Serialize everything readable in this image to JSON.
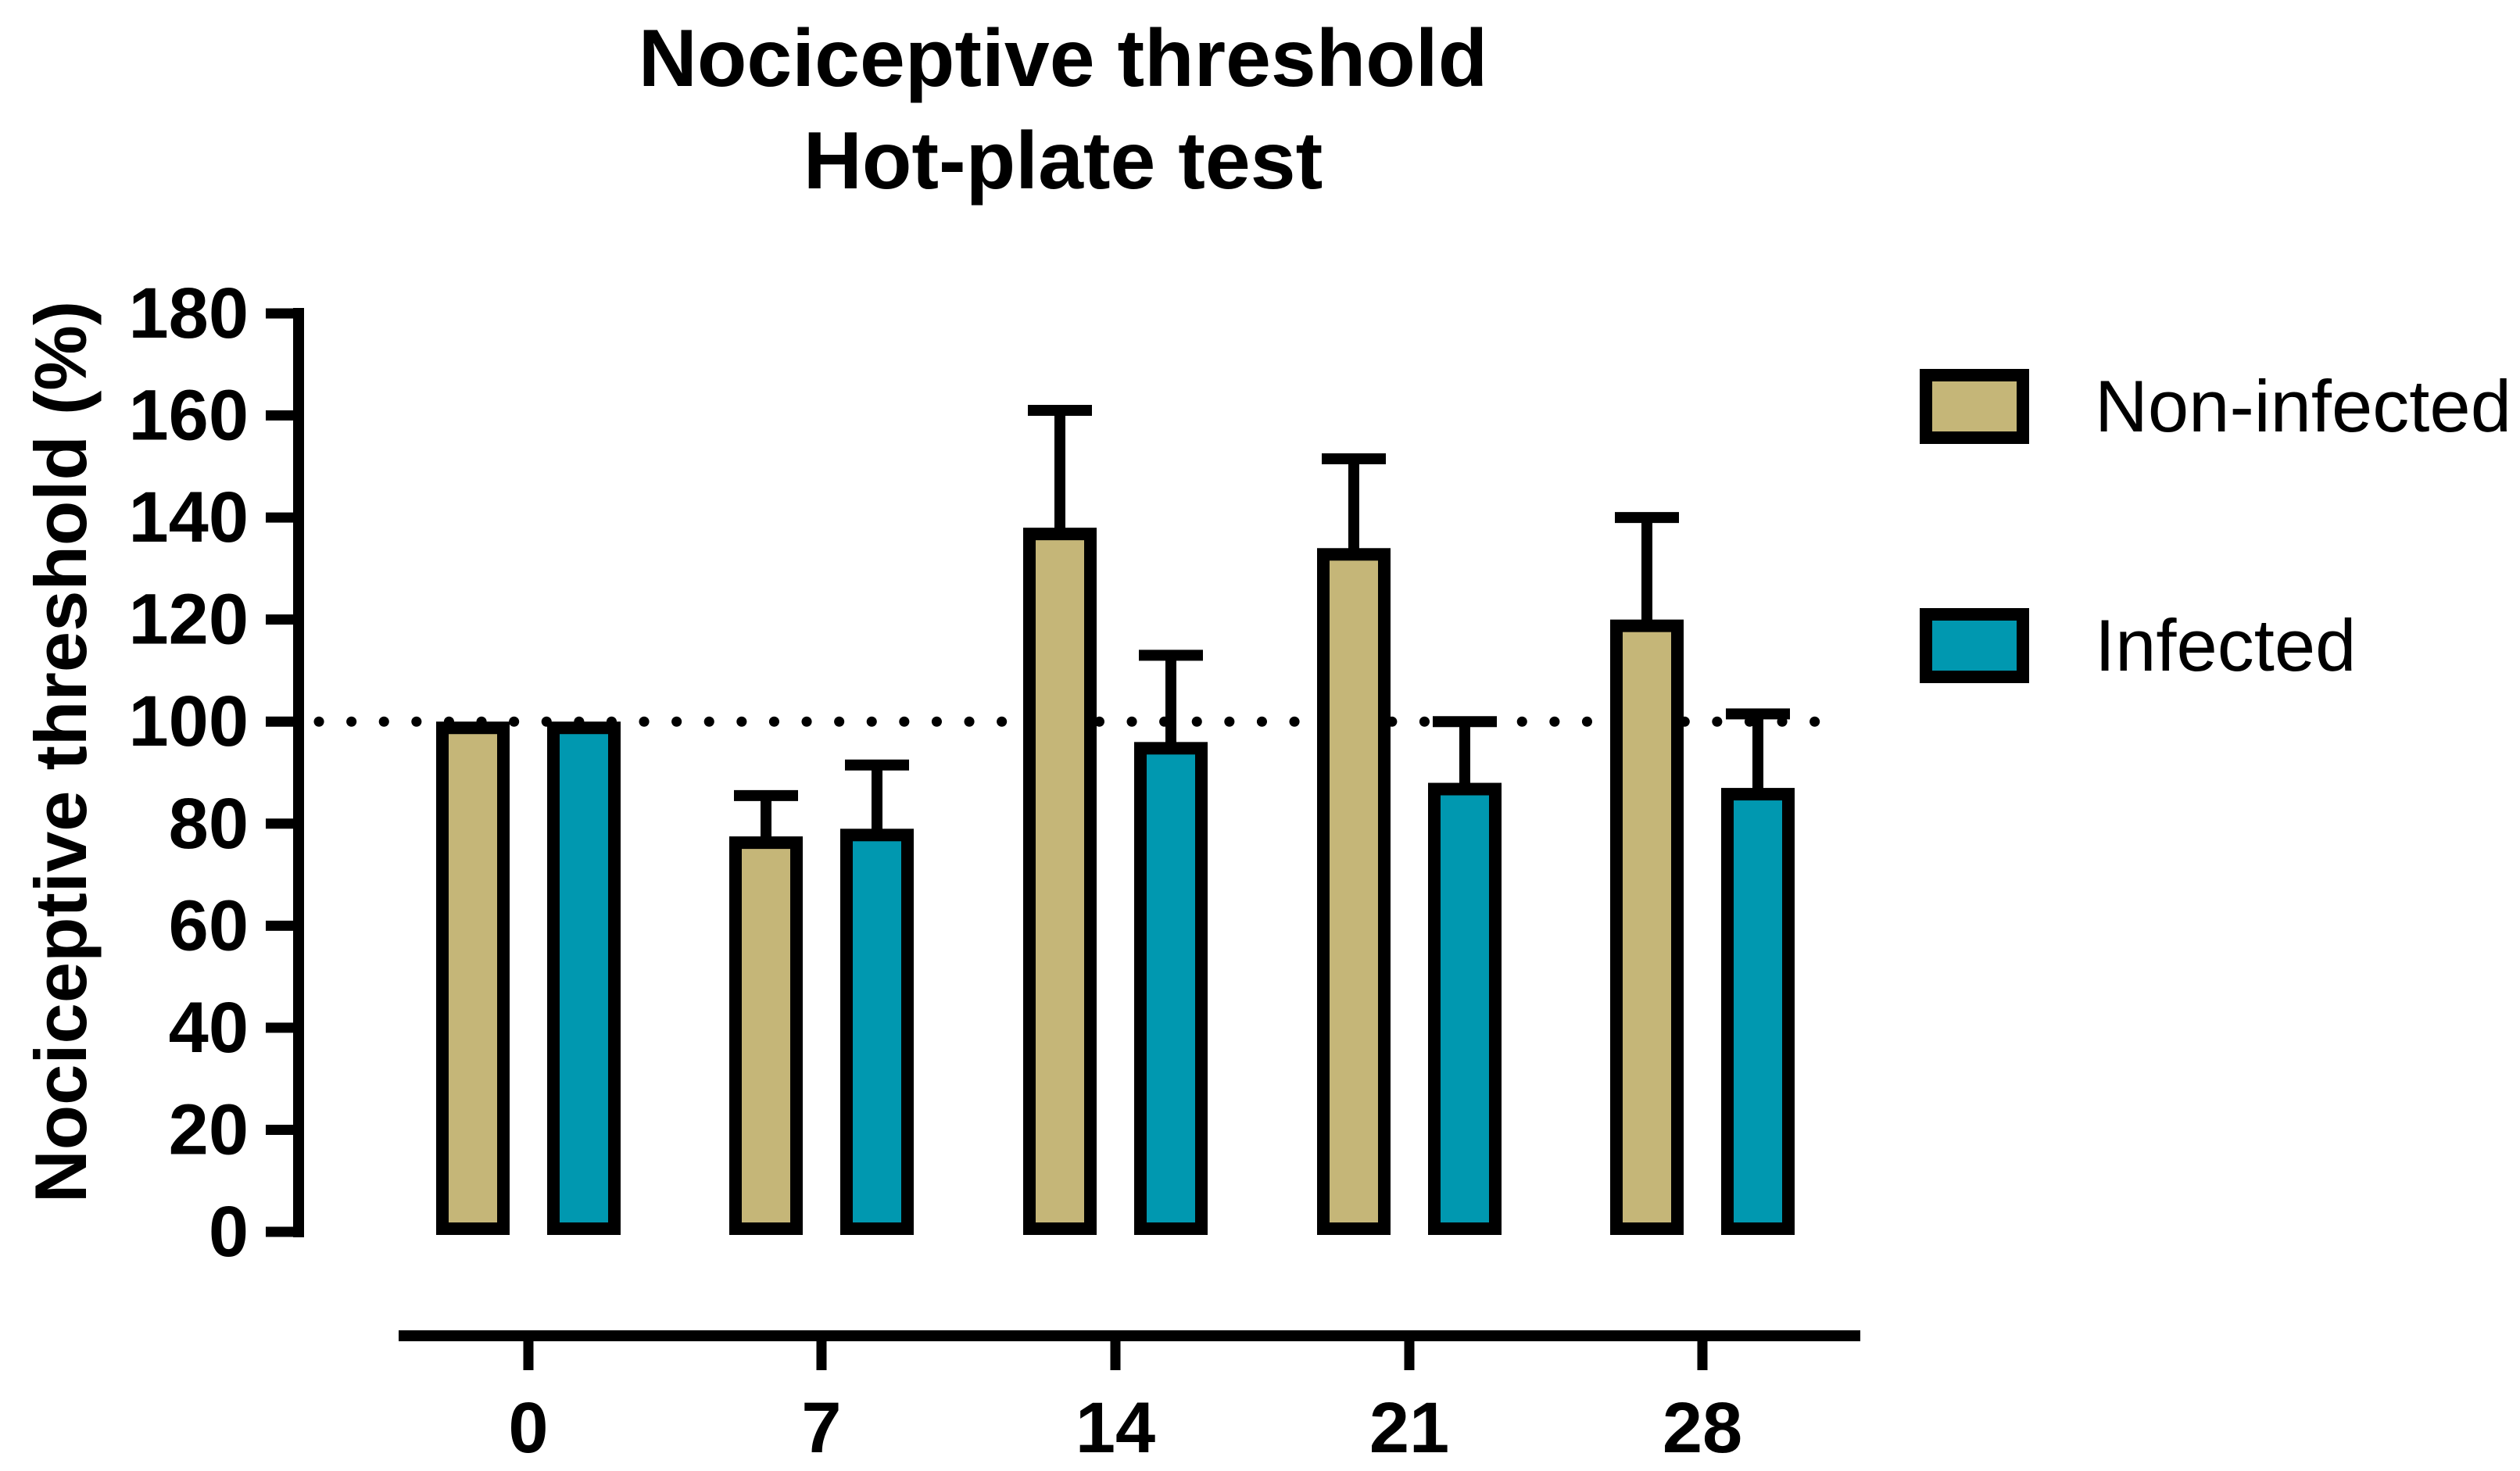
{
  "title": {
    "line1": "Nociceptive threshold",
    "line2": "Hot-plate test"
  },
  "y_axis": {
    "label": "Nociceptive threshold (%)",
    "ticks": [
      0,
      20,
      40,
      60,
      80,
      100,
      120,
      140,
      160,
      180
    ],
    "min": 0,
    "max": 180
  },
  "x_axis": {
    "categories": [
      "0",
      "7",
      "14",
      "21",
      "28"
    ]
  },
  "legend": {
    "items": [
      {
        "label": "Non-infected",
        "color": "#C5B678"
      },
      {
        "label": "Infected",
        "color": "#0098B0"
      }
    ]
  },
  "reference_line": {
    "value": 100,
    "style": "dotted"
  },
  "colors": {
    "non_infected_fill": "#C5B678",
    "infected_fill": "#0098B0",
    "axis": "#000000",
    "background": "#FFFFFF"
  },
  "chart_data": {
    "type": "bar",
    "title": "Nociceptive threshold — Hot-plate test",
    "categories": [
      "0",
      "7",
      "14",
      "21",
      "28"
    ],
    "series": [
      {
        "name": "Non-infected",
        "color": "#C5B678",
        "values": [
          100,
          77.5,
          138,
          134,
          120
        ],
        "sem_upper": [
          0,
          8,
          23,
          17.5,
          20
        ]
      },
      {
        "name": "Infected",
        "color": "#0098B0",
        "values": [
          100,
          79,
          96,
          88,
          87
        ],
        "sem_upper": [
          0,
          12.5,
          17,
          12,
          14.5
        ]
      }
    ],
    "xlabel": "",
    "ylabel": "Nociceptive threshold (%)",
    "ylim": [
      0,
      180
    ],
    "ytick_step": 20,
    "reference_line_y": 100,
    "grid": false,
    "legend_position": "right",
    "error_bars": "upper SEM only"
  }
}
